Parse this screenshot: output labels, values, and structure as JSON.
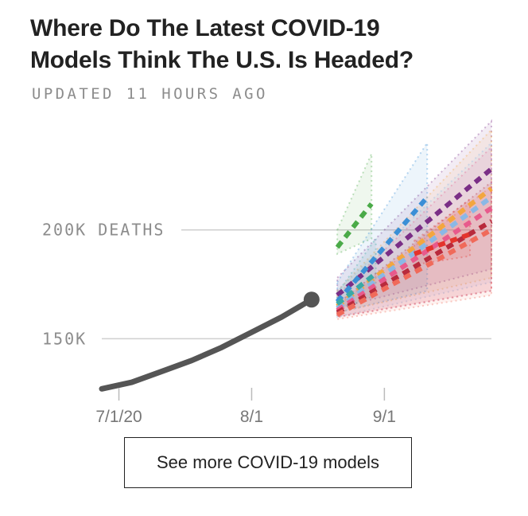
{
  "header": {
    "title_line1": "Where Do The Latest COVID-19",
    "title_line2": "Models Think The U.S. Is Headed?",
    "updated": "UPDATED 11 HOURS AGO"
  },
  "cta": {
    "label": "See more COVID-19 models"
  },
  "chart_data": {
    "type": "line",
    "title": "Where Do The Latest COVID-19 Models Think The U.S. Is Headed?",
    "xlabel": "",
    "ylabel": "Deaths",
    "y_tick_labels": [
      "150K",
      "200K DEATHS"
    ],
    "y_tick_values": [
      150000,
      200000
    ],
    "x_tick_labels": [
      "7/1/20",
      "8/1",
      "9/1"
    ],
    "x_tick_days": [
      0,
      31,
      62
    ],
    "ylim": [
      126000,
      246000
    ],
    "xlim_days": [
      -4,
      87
    ],
    "grid": true,
    "observed": {
      "name": "Observed deaths",
      "color": "#555555",
      "x_days": [
        -4,
        3,
        10,
        17,
        24,
        31,
        38,
        45
      ],
      "values": [
        127000,
        130000,
        135000,
        140000,
        146000,
        153000,
        160000,
        168000
      ]
    },
    "forecast_start_day": 51,
    "forecast_end_day": 87,
    "forecasts": [
      {
        "name": "green",
        "color": "#4aaa48",
        "x_days": [
          51,
          59
        ],
        "values": [
          192000,
          212000
        ],
        "lower": [
          189000,
          196000
        ],
        "upper": [
          200000,
          235000
        ]
      },
      {
        "name": "purple",
        "color": "#7a2e86",
        "x_days": [
          51,
          87
        ],
        "values": [
          170000,
          228000
        ],
        "lower": [
          164000,
          182000
        ],
        "upper": [
          178000,
          250000
        ]
      },
      {
        "name": "orange",
        "color": "#f3a63f",
        "x_days": [
          51,
          87
        ],
        "values": [
          165000,
          219000
        ],
        "lower": [
          162000,
          178000
        ],
        "upper": [
          172000,
          246000
        ]
      },
      {
        "name": "blue",
        "color": "#3a8fd6",
        "x_days": [
          51,
          72
        ],
        "values": [
          167000,
          215000
        ],
        "lower": [
          162000,
          172000
        ],
        "upper": [
          176000,
          240000
        ]
      },
      {
        "name": "light-blue",
        "color": "#8ab8e6",
        "x_days": [
          51,
          87
        ],
        "values": [
          164000,
          215000
        ],
        "lower": [
          160000,
          176000
        ],
        "upper": [
          172000,
          240000
        ]
      },
      {
        "name": "pink",
        "color": "#e85a8c",
        "x_days": [
          51,
          87
        ],
        "values": [
          163000,
          210000
        ],
        "lower": [
          160000,
          172000
        ],
        "upper": [
          170000,
          238000
        ]
      },
      {
        "name": "teal",
        "color": "#39a9a6",
        "x_days": [
          51,
          60
        ],
        "values": [
          166000,
          180000
        ],
        "lower": [
          163000,
          170000
        ],
        "upper": [
          171000,
          196000
        ]
      },
      {
        "name": "dark-red",
        "color": "#b82a3c",
        "x_days": [
          51,
          87
        ],
        "values": [
          162000,
          204000
        ],
        "lower": [
          160000,
          172000
        ],
        "upper": [
          166000,
          222000
        ]
      },
      {
        "name": "coral",
        "color": "#f06a5a",
        "x_days": [
          51,
          87
        ],
        "values": [
          161000,
          200000
        ],
        "lower": [
          159000,
          170000
        ],
        "upper": [
          165000,
          220000
        ]
      },
      {
        "name": "red",
        "color": "#e4332c",
        "x_days": [
          69,
          82
        ],
        "values": [
          189000,
          198000
        ],
        "lower": [
          184000,
          188000
        ],
        "upper": [
          195000,
          214000
        ]
      }
    ]
  }
}
